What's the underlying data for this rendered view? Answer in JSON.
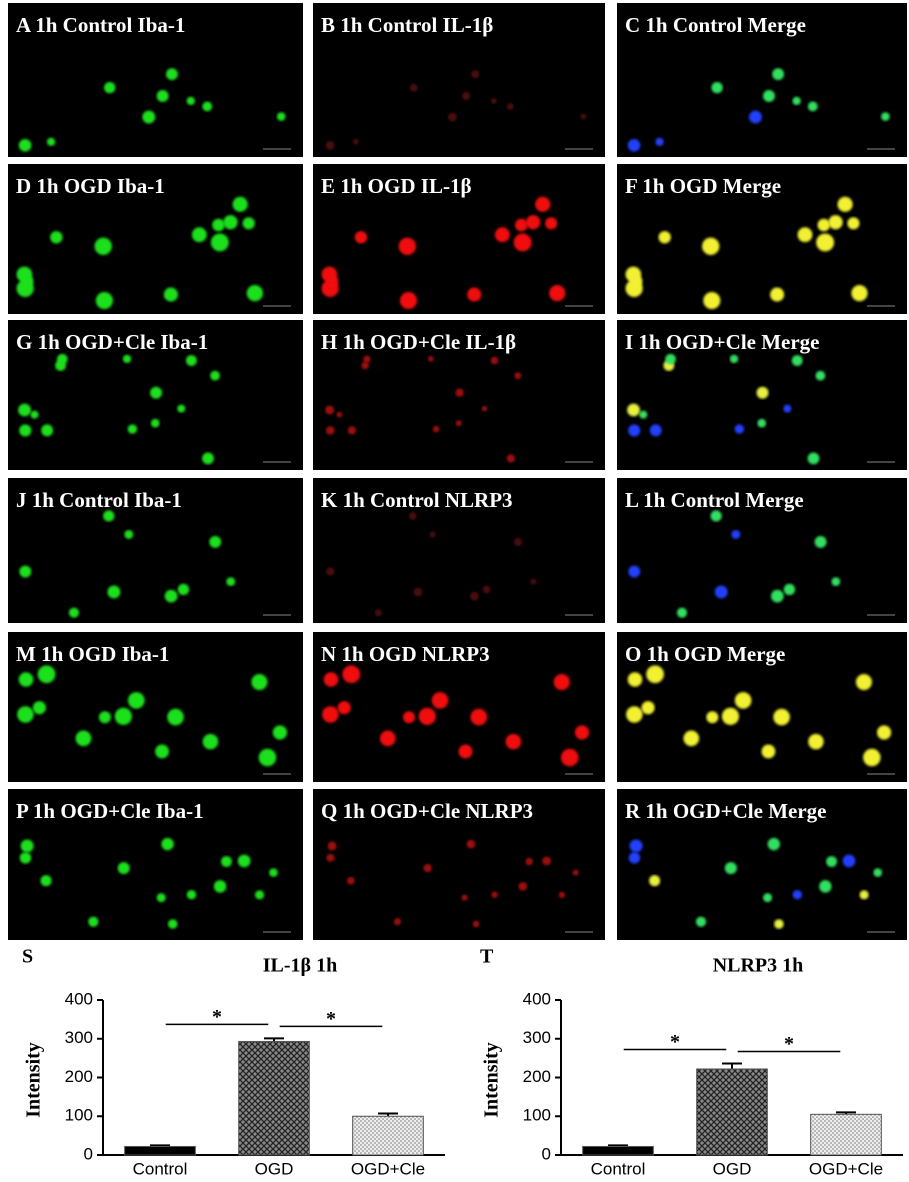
{
  "panels": [
    "A 1h Control Iba-1",
    "B 1h Control IL-1β",
    "C 1h Control Merge",
    "D 1h OGD Iba-1",
    "E 1h OGD IL-1β",
    "F 1h OGD Merge",
    "G 1h OGD+Cle Iba-1",
    "H 1h OGD+Cle IL-1β",
    "I 1h OGD+Cle Merge",
    "J 1h Control Iba-1",
    "K 1h Control NLRP3",
    "L 1h Control Merge",
    "M 1h OGD Iba-1",
    "N 1h OGD NLRP3",
    "O 1h OGD Merge",
    "P 1h OGD+Cle Iba-1",
    "Q 1h OGD+Cle NLRP3",
    "R 1h OGD+Cle Merge"
  ],
  "chart_data": [
    {
      "type": "bar",
      "panel": "S",
      "title": "IL-1β   1h",
      "y_label": "Intensity",
      "categories": [
        "Control",
        "OGD",
        "OGD+Cle"
      ],
      "values": [
        22,
        293,
        100
      ],
      "errors": [
        3,
        8,
        7
      ],
      "fills": [
        "solid",
        "crosshatch",
        "dots"
      ],
      "ylim": [
        0,
        400
      ],
      "yticks": [
        0,
        100,
        200,
        300,
        400
      ],
      "comparisons": [
        {
          "from": "Control",
          "to": "OGD",
          "label": "*"
        },
        {
          "from": "OGD",
          "to": "OGD+Cle",
          "label": "*"
        }
      ]
    },
    {
      "type": "bar",
      "panel": "T",
      "title": "NLRP3   1h",
      "y_label": "Intensity",
      "categories": [
        "Control",
        "OGD",
        "OGD+Cle"
      ],
      "values": [
        22,
        222,
        105
      ],
      "errors": [
        3,
        14,
        5
      ],
      "fills": [
        "solid",
        "crosshatch",
        "dots"
      ],
      "ylim": [
        0,
        400
      ],
      "yticks": [
        0,
        100,
        200,
        300,
        400
      ],
      "comparisons": [
        {
          "from": "Control",
          "to": "OGD",
          "label": "*"
        },
        {
          "from": "OGD",
          "to": "OGD+Cle",
          "label": "*"
        }
      ]
    }
  ]
}
